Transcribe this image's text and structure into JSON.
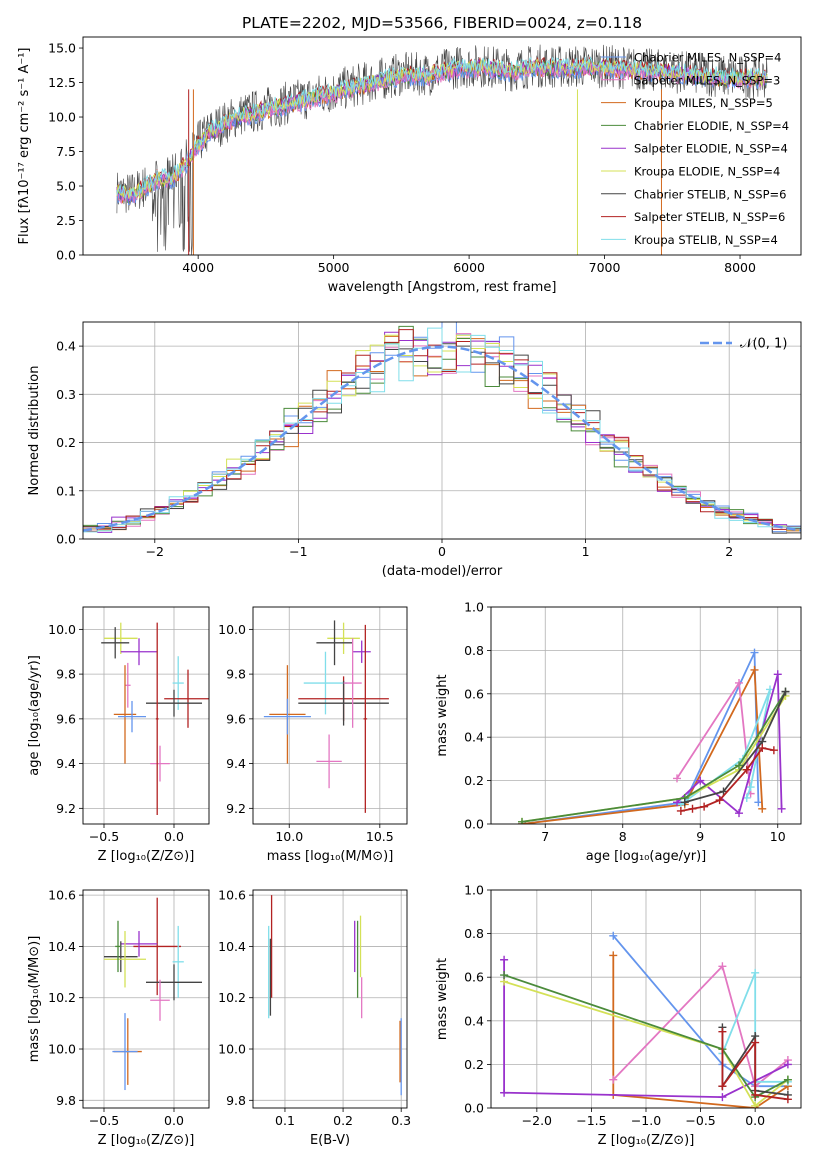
{
  "chart_data": [
    {
      "id": "spectrum",
      "type": "line",
      "title": "PLATE=2202, MJD=53566, FIBERID=0024, z=0.118",
      "xlabel": "wavelength [Angstrom, rest frame]",
      "ylabel": "Flux [fλ10⁻¹⁷ erg cm⁻² s⁻¹ A⁻¹]",
      "xlim": [
        3150,
        8450
      ],
      "ylim": [
        0,
        15.8
      ],
      "xticks": [
        4000,
        5000,
        6000,
        7000,
        8000
      ],
      "yticks": [
        0.0,
        2.5,
        5.0,
        7.5,
        10.0,
        12.5,
        15.0
      ],
      "grid": false,
      "legend_position": "top-right",
      "envelope": {
        "x": [
          3400,
          3500,
          3600,
          3700,
          3800,
          3900,
          4000,
          4100,
          4200,
          4300,
          4500,
          4700,
          4900,
          5100,
          5300,
          5500,
          5700,
          5900,
          6100,
          6300,
          6500,
          6700,
          6900,
          7100,
          7300,
          7500,
          7700,
          7900,
          8100,
          8200
        ],
        "y": [
          4.5,
          4.3,
          4.8,
          5.5,
          5.5,
          6.5,
          8.0,
          9.0,
          9.5,
          10.0,
          10.5,
          11.0,
          11.5,
          12.0,
          12.5,
          13.0,
          13.0,
          13.5,
          13.6,
          13.3,
          13.6,
          13.5,
          13.6,
          13.5,
          13.3,
          13.2,
          13.0,
          12.8,
          12.8,
          12.8
        ]
      },
      "series": [
        {
          "name": "Chabrier MILES, N_SSP=4",
          "color": "#6495ed"
        },
        {
          "name": "Salpeter MILES, N_SSP=3",
          "color": "#e377c2"
        },
        {
          "name": "Kroupa MILES, N_SSP=5",
          "color": "#d2691e"
        },
        {
          "name": "Chabrier ELODIE, N_SSP=4",
          "color": "#4b8b3b"
        },
        {
          "name": "Salpeter ELODIE, N_SSP=4",
          "color": "#9932cc"
        },
        {
          "name": "Kroupa ELODIE, N_SSP=4",
          "color": "#d4e157"
        },
        {
          "name": "Chabrier STELIB, N_SSP=6",
          "color": "#444444"
        },
        {
          "name": "Salpeter STELIB, N_SSP=6",
          "color": "#b22222"
        },
        {
          "name": "Kroupa STELIB, N_SSP=4",
          "color": "#80deea"
        }
      ]
    },
    {
      "id": "residuals",
      "type": "line",
      "xlabel": "(data-model)/error",
      "ylabel": "Normed distribution",
      "xlim": [
        -2.5,
        2.5
      ],
      "ylim": [
        0,
        0.45
      ],
      "xticks": [
        -2,
        -1,
        0,
        1,
        2
      ],
      "yticks": [
        0.0,
        0.1,
        0.2,
        0.3,
        0.4
      ],
      "grid": true,
      "legend_position": "top-right",
      "legend": "𝒩(0, 1)",
      "normal_color": "#6495ed",
      "bin_width": 0.1,
      "bin_start": -2.5,
      "colors": [
        "#6495ed",
        "#e377c2",
        "#d2691e",
        "#4b8b3b",
        "#9932cc",
        "#d4e157",
        "#444444",
        "#b22222",
        "#80deea"
      ]
    },
    {
      "id": "age-vs-Z",
      "type": "scatter",
      "xlabel": "Z [log₁₀(Z/Z⊙)]",
      "ylabel": "age  [log₁₀(age/yr)]",
      "xlim": [
        -0.65,
        0.25
      ],
      "ylim": [
        9.13,
        10.1
      ],
      "xticks": [
        -0.5,
        0.0
      ],
      "yticks": [
        9.2,
        9.4,
        9.6,
        9.8,
        10.0
      ],
      "grid": true,
      "points": [
        {
          "x": -0.38,
          "y": 9.96,
          "xerr": 0.12,
          "yerr": 0.07,
          "color": "#d4e157"
        },
        {
          "x": -0.42,
          "y": 9.94,
          "xerr": 0.1,
          "yerr": 0.07,
          "color": "#444444"
        },
        {
          "x": -0.25,
          "y": 9.9,
          "xerr": 0.13,
          "yerr": 0.06,
          "color": "#9932cc"
        },
        {
          "x": -0.33,
          "y": 9.75,
          "xerr": 0.02,
          "yerr": 0.1,
          "color": "#e377c2"
        },
        {
          "x": 0.03,
          "y": 9.76,
          "xerr": 0.04,
          "yerr": 0.12,
          "color": "#80deea"
        },
        {
          "x": 0.1,
          "y": 9.69,
          "xerr": 0.17,
          "yerr": 0.13,
          "color": "#b22222"
        },
        {
          "x": 0.0,
          "y": 9.67,
          "xerr": 0.2,
          "yerr": 0.06,
          "color": "#444444"
        },
        {
          "x": -0.35,
          "y": 9.62,
          "xerr": 0.08,
          "yerr": 0.22,
          "color": "#d2691e"
        },
        {
          "x": -0.3,
          "y": 9.61,
          "xerr": 0.1,
          "yerr": 0.07,
          "color": "#6495ed"
        },
        {
          "x": -0.1,
          "y": 9.4,
          "xerr": 0.07,
          "yerr": 0.08,
          "color": "#e377c2"
        },
        {
          "x": -0.12,
          "y": 9.6,
          "xerr": 0.01,
          "yerr": 0.43,
          "color": "#b22222"
        }
      ]
    },
    {
      "id": "age-vs-mass",
      "type": "scatter",
      "xlabel": "mass [log₁₀(M/M⊙)]",
      "ylabel": "",
      "xlim": [
        9.8,
        10.65
      ],
      "ylim": [
        9.13,
        10.1
      ],
      "xticks": [
        10.0,
        10.5
      ],
      "yticks": [
        9.2,
        9.4,
        9.6,
        9.8,
        10.0
      ],
      "grid": true,
      "points": [
        {
          "x": 10.3,
          "y": 9.96,
          "xerr": 0.09,
          "yerr": 0.07,
          "color": "#d4e157"
        },
        {
          "x": 10.25,
          "y": 9.94,
          "xerr": 0.1,
          "yerr": 0.1,
          "color": "#444444"
        },
        {
          "x": 10.4,
          "y": 9.9,
          "xerr": 0.05,
          "yerr": 0.05,
          "color": "#9932cc"
        },
        {
          "x": 10.2,
          "y": 9.76,
          "xerr": 0.12,
          "yerr": 0.14,
          "color": "#80deea"
        },
        {
          "x": 10.3,
          "y": 9.69,
          "xerr": 0.25,
          "yerr": 0.1,
          "color": "#b22222"
        },
        {
          "x": 10.3,
          "y": 9.67,
          "xerr": 0.25,
          "yerr": 0.1,
          "color": "#444444"
        },
        {
          "x": 9.99,
          "y": 9.62,
          "xerr": 0.1,
          "yerr": 0.22,
          "color": "#d2691e"
        },
        {
          "x": 9.99,
          "y": 9.61,
          "xerr": 0.13,
          "yerr": 0.08,
          "color": "#6495ed"
        },
        {
          "x": 10.22,
          "y": 9.41,
          "xerr": 0.07,
          "yerr": 0.12,
          "color": "#e377c2"
        },
        {
          "x": 10.42,
          "y": 9.6,
          "xerr": 0.01,
          "yerr": 0.42,
          "color": "#b22222"
        },
        {
          "x": 10.35,
          "y": 9.76,
          "xerr": 0.05,
          "yerr": 0.2,
          "color": "#e377c2"
        }
      ]
    },
    {
      "id": "mass-weight-vs-age",
      "type": "line",
      "xlabel": "age  [log₁₀(age/yr)]",
      "ylabel": "mass weight",
      "xlim": [
        6.3,
        10.3
      ],
      "ylim": [
        0,
        1.0
      ],
      "xticks": [
        7,
        8,
        9,
        10
      ],
      "yticks": [
        0.0,
        0.2,
        0.4,
        0.6,
        0.8,
        1.0
      ],
      "grid": true,
      "series": [
        {
          "color": "#6495ed",
          "points": [
            [
              6.7,
              0.0
            ],
            [
              8.8,
              0.1
            ],
            [
              9.7,
              0.79
            ],
            [
              9.75,
              0.1
            ]
          ]
        },
        {
          "color": "#d2691e",
          "points": [
            [
              6.7,
              0.0
            ],
            [
              8.8,
              0.09
            ],
            [
              9.7,
              0.71
            ],
            [
              9.8,
              0.07
            ]
          ]
        },
        {
          "color": "#e377c2",
          "points": [
            [
              8.7,
              0.21
            ],
            [
              9.5,
              0.65
            ],
            [
              9.65,
              0.14
            ]
          ]
        },
        {
          "color": "#80deea",
          "points": [
            [
              8.75,
              0.09
            ],
            [
              9.55,
              0.3
            ],
            [
              9.9,
              0.62
            ],
            [
              9.65,
              0.17
            ],
            [
              9.6,
              0.12
            ]
          ]
        },
        {
          "color": "#9932cc",
          "points": [
            [
              8.7,
              0.1
            ],
            [
              9.0,
              0.2
            ],
            [
              9.5,
              0.05
            ],
            [
              10.0,
              0.69
            ],
            [
              10.05,
              0.07
            ]
          ]
        },
        {
          "color": "#d4e157",
          "points": [
            [
              6.7,
              0.01
            ],
            [
              8.8,
              0.12
            ],
            [
              9.5,
              0.25
            ],
            [
              10.1,
              0.59
            ]
          ]
        },
        {
          "color": "#4b8b3b",
          "points": [
            [
              6.7,
              0.01
            ],
            [
              8.8,
              0.12
            ],
            [
              9.5,
              0.27
            ],
            [
              10.1,
              0.61
            ]
          ]
        },
        {
          "color": "#444444",
          "points": [
            [
              8.8,
              0.1
            ],
            [
              9.3,
              0.15
            ],
            [
              9.8,
              0.38
            ],
            [
              10.1,
              0.61
            ]
          ]
        },
        {
          "color": "#b22222",
          "points": [
            [
              8.75,
              0.06
            ],
            [
              8.9,
              0.07
            ],
            [
              9.05,
              0.08
            ],
            [
              9.25,
              0.11
            ],
            [
              9.6,
              0.25
            ],
            [
              9.8,
              0.35
            ],
            [
              9.95,
              0.34
            ]
          ]
        }
      ]
    },
    {
      "id": "mass-vs-Z",
      "type": "scatter",
      "xlabel": "Z [log₁₀(Z/Z⊙)]",
      "ylabel": "mass [log₁₀(M/M⊙)]",
      "xlim": [
        -0.65,
        0.25
      ],
      "ylim": [
        9.77,
        10.62
      ],
      "xticks": [
        -0.5,
        0.0
      ],
      "yticks": [
        9.8,
        10.0,
        10.2,
        10.4,
        10.6
      ],
      "grid": true,
      "points": [
        {
          "x": -0.12,
          "y": 10.4,
          "xerr": 0.17,
          "yerr": 0.19,
          "color": "#b22222"
        },
        {
          "x": -0.25,
          "y": 10.41,
          "xerr": 0.13,
          "yerr": 0.05,
          "color": "#9932cc"
        },
        {
          "x": -0.38,
          "y": 10.36,
          "xerr": 0.12,
          "yerr": 0.06,
          "color": "#444444"
        },
        {
          "x": -0.35,
          "y": 10.35,
          "xerr": 0.15,
          "yerr": 0.11,
          "color": "#d4e157"
        },
        {
          "x": -0.4,
          "y": 10.4,
          "xerr": 0.02,
          "yerr": 0.1,
          "color": "#4b8b3b"
        },
        {
          "x": 0.03,
          "y": 10.34,
          "xerr": 0.04,
          "yerr": 0.14,
          "color": "#80deea"
        },
        {
          "x": 0.0,
          "y": 10.26,
          "xerr": 0.2,
          "yerr": 0.07,
          "color": "#444444"
        },
        {
          "x": -0.1,
          "y": 10.19,
          "xerr": 0.07,
          "yerr": 0.08,
          "color": "#e377c2"
        },
        {
          "x": -0.33,
          "y": 9.99,
          "xerr": 0.1,
          "yerr": 0.13,
          "color": "#d2691e"
        },
        {
          "x": -0.35,
          "y": 9.99,
          "xerr": 0.09,
          "yerr": 0.15,
          "color": "#6495ed"
        }
      ]
    },
    {
      "id": "mass-vs-EBV",
      "type": "scatter",
      "xlabel": "E(B-V)",
      "ylabel": "",
      "xlim": [
        0.045,
        0.31
      ],
      "ylim": [
        9.77,
        10.62
      ],
      "xticks": [
        0.1,
        0.2,
        0.3
      ],
      "yticks": [
        9.8,
        10.0,
        10.2,
        10.4,
        10.6
      ],
      "grid": true,
      "points": [
        {
          "x": 0.077,
          "y": 10.4,
          "xerr": 0,
          "yerr": 0.2,
          "color": "#b22222"
        },
        {
          "x": 0.072,
          "y": 10.3,
          "xerr": 0,
          "yerr": 0.18,
          "color": "#80deea"
        },
        {
          "x": 0.075,
          "y": 10.28,
          "xerr": 0,
          "yerr": 0.15,
          "color": "#444444"
        },
        {
          "x": 0.22,
          "y": 10.4,
          "xerr": 0,
          "yerr": 0.1,
          "color": "#9932cc"
        },
        {
          "x": 0.225,
          "y": 10.35,
          "xerr": 0,
          "yerr": 0.15,
          "color": "#4b8b3b"
        },
        {
          "x": 0.23,
          "y": 10.4,
          "xerr": 0,
          "yerr": 0.12,
          "color": "#d4e157"
        },
        {
          "x": 0.232,
          "y": 10.2,
          "xerr": 0,
          "yerr": 0.08,
          "color": "#e377c2"
        },
        {
          "x": 0.298,
          "y": 9.99,
          "xerr": 0,
          "yerr": 0.12,
          "color": "#d2691e"
        },
        {
          "x": 0.3,
          "y": 9.97,
          "xerr": 0,
          "yerr": 0.15,
          "color": "#6495ed"
        }
      ]
    },
    {
      "id": "mass-weight-vs-Z",
      "type": "line",
      "xlabel": "Z [log₁₀(Z/Z⊙)]",
      "ylabel": "mass weight",
      "xlim": [
        -2.42,
        0.42
      ],
      "ylim": [
        0,
        1.0
      ],
      "xticks": [
        -2.0,
        -1.5,
        -1.0,
        -0.5,
        0.0
      ],
      "yticks": [
        0.0,
        0.2,
        0.4,
        0.6,
        0.8,
        1.0
      ],
      "grid": true,
      "series": [
        {
          "color": "#6495ed",
          "points": [
            [
              -1.3,
              0.79
            ],
            [
              -0.3,
              0.2
            ],
            [
              0.0,
              0.1
            ],
            [
              0.3,
              0.1
            ]
          ]
        },
        {
          "color": "#d2691e",
          "points": [
            [
              -1.3,
              0.7
            ],
            [
              -1.3,
              0.06
            ],
            [
              0.0,
              0.0
            ],
            [
              0.3,
              0.1
            ]
          ]
        },
        {
          "color": "#e377c2",
          "points": [
            [
              -1.3,
              0.13
            ],
            [
              -0.3,
              0.65
            ],
            [
              0.0,
              0.1
            ],
            [
              0.3,
              0.22
            ]
          ]
        },
        {
          "color": "#80deea",
          "points": [
            [
              -0.3,
              0.25
            ],
            [
              0.0,
              0.62
            ],
            [
              0.0,
              0.12
            ],
            [
              0.3,
              0.12
            ]
          ]
        },
        {
          "color": "#9932cc",
          "points": [
            [
              -2.3,
              0.68
            ],
            [
              -2.3,
              0.07
            ],
            [
              -0.3,
              0.05
            ],
            [
              0.3,
              0.2
            ]
          ]
        },
        {
          "color": "#d4e157",
          "points": [
            [
              -2.3,
              0.58
            ],
            [
              -0.3,
              0.27
            ],
            [
              0.0,
              0.01
            ],
            [
              0.3,
              0.13
            ]
          ]
        },
        {
          "color": "#4b8b3b",
          "points": [
            [
              -2.3,
              0.61
            ],
            [
              -0.3,
              0.27
            ],
            [
              0.0,
              0.05
            ],
            [
              0.3,
              0.13
            ]
          ]
        },
        {
          "color": "#444444",
          "points": [
            [
              -0.3,
              0.37
            ],
            [
              -0.3,
              0.1
            ],
            [
              0.0,
              0.33
            ],
            [
              0.0,
              0.08
            ],
            [
              0.3,
              0.06
            ]
          ]
        },
        {
          "color": "#b22222",
          "points": [
            [
              -0.3,
              0.35
            ],
            [
              -0.3,
              0.1
            ],
            [
              0.0,
              0.3
            ],
            [
              0.0,
              0.06
            ],
            [
              0.3,
              0.04
            ]
          ]
        }
      ]
    }
  ]
}
